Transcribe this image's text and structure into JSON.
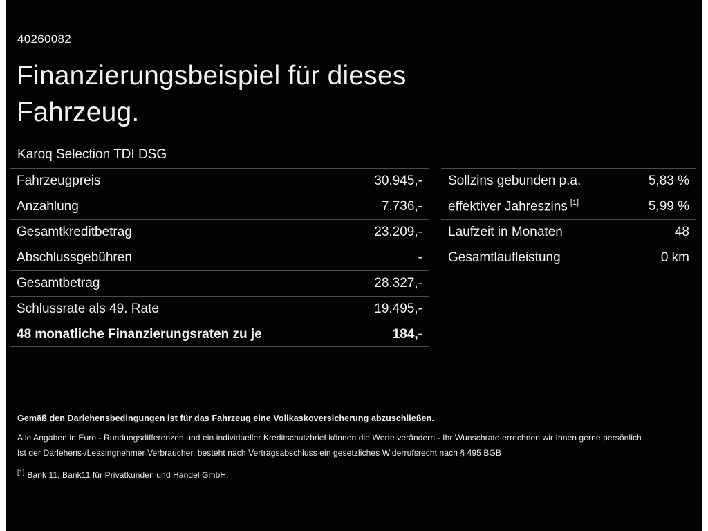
{
  "page": {
    "id_number": "40260082",
    "title_line1": "Finanzierungsbeispiel für dieses",
    "title_line2": "Fahrzeug.",
    "vehicle": "Karoq Selection TDI DSG"
  },
  "left_table": {
    "rows": [
      {
        "label": "Fahrzeugpreis",
        "value": "30.945,-"
      },
      {
        "label": "Anzahlung",
        "value": "7.736,-"
      },
      {
        "label": "Gesamtkreditbetrag",
        "value": "23.209,-"
      },
      {
        "label": "Abschlussgebühren",
        "value": "-"
      },
      {
        "label": "Gesamtbetrag",
        "value": "28.327,-"
      },
      {
        "label": "Schlussrate als 49. Rate",
        "value": "19.495,-"
      },
      {
        "label": "48 monatliche Finanzierungsraten zu je",
        "value": "184,-"
      }
    ]
  },
  "right_table": {
    "rows": [
      {
        "label": "Sollzins gebunden p.a.",
        "sup": "",
        "value": "5,83 %"
      },
      {
        "label": "effektiver Jahreszins",
        "sup": "[1]",
        "value": "5,99 %"
      },
      {
        "label": "Laufzeit in Monaten",
        "sup": "",
        "value": "48"
      },
      {
        "label": "Gesamtlaufleistung",
        "sup": "",
        "value": "0 km"
      }
    ]
  },
  "footnotes": {
    "insurance": "Gemäß den Darlehensbedingungen ist für das Fahrzeug eine Vollkaskoversicherung abzuschließen.",
    "disclaimer": "Alle Angaben in Euro - Rundungsdifferenzen und ein individueller Kreditschutzbrief können die Werte verändern - Ihr Wunschrate errechnen wir Ihnen gerne persönlich",
    "withdrawal": "Ist der Darlehens-/Leasingnehmer Verbraucher, besteht nach Vertragsabschluss ein gesetzliches Widerrufsrecht nach § 495 BGB",
    "bank_ref_mark": "[1]",
    "bank": "Bank 11, Bank11 für Privatkunden und Handel GmbH."
  },
  "colors": {
    "background": "#030303",
    "text": "#f2f2f2",
    "divider": "#4d4d4d",
    "edge_strip": "#ffffff"
  }
}
